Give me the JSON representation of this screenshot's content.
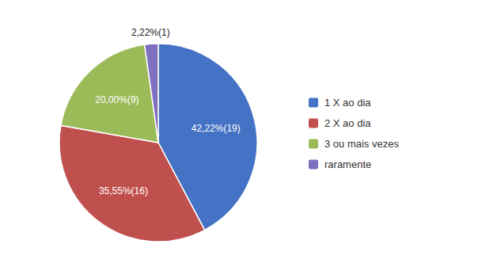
{
  "chart_data": {
    "type": "pie",
    "categories": [
      "1 X ao dia",
      "2 X ao dia",
      "3 ou mais vezes",
      "raramente"
    ],
    "values": [
      42.22,
      35.55,
      20.0,
      2.22
    ],
    "value_labels": [
      "42,22%(19)",
      "35,55%(16)",
      "20,00%(9)",
      "2,22%(1)"
    ],
    "colors": [
      "#4472c4",
      "#c0504d",
      "#9bbb59",
      "#7f6fbf"
    ],
    "data_labels": true,
    "legend": "right"
  }
}
